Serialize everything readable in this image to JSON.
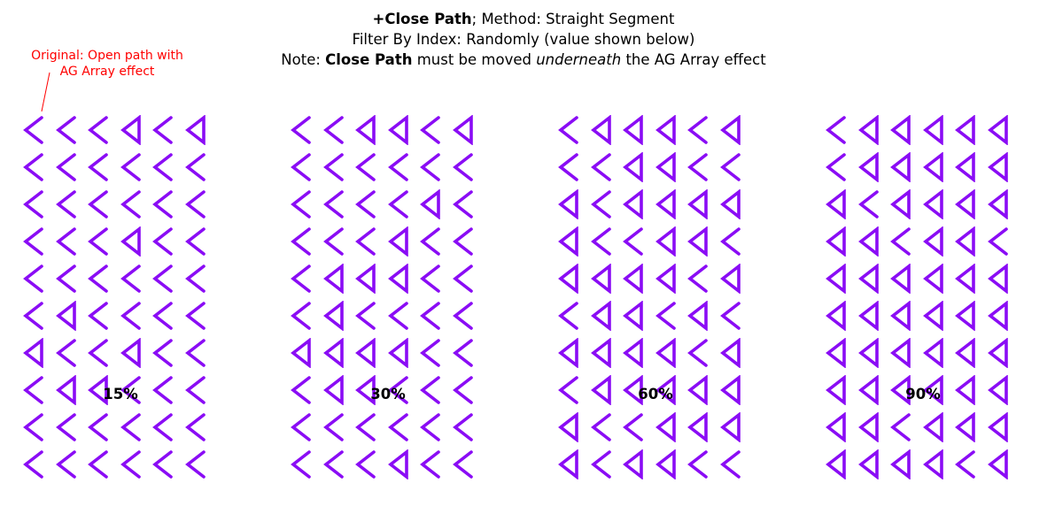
{
  "header": {
    "line1": {
      "bold": "+Close Path",
      "rest": "; Method: Straight Segment"
    },
    "line2": "Filter By Index: Randomly (value shown below)",
    "line3": {
      "prefix": "Note: ",
      "bold": "Close Path",
      "mid": " must be moved ",
      "italic": "underneath",
      "suffix": " the AG Array effect"
    }
  },
  "annotation": {
    "line1": "Original: Open path with",
    "line2": "AG Array effect",
    "color": "#ff0000"
  },
  "colors": {
    "shape_stroke": "#8a0cf5",
    "annotation": "#ff0000",
    "text": "#000000"
  },
  "legend": {
    "open_shape": "open chevron (path not closed)",
    "closed_shape": "closed triangle (path closed)"
  },
  "panels": [
    {
      "label": "15%",
      "grid": [
        [
          0,
          0,
          0,
          1,
          0,
          1
        ],
        [
          0,
          0,
          0,
          0,
          0,
          0
        ],
        [
          0,
          0,
          0,
          0,
          0,
          0
        ],
        [
          0,
          0,
          0,
          1,
          0,
          0
        ],
        [
          0,
          0,
          0,
          0,
          0,
          0
        ],
        [
          0,
          1,
          0,
          0,
          0,
          0
        ],
        [
          1,
          0,
          0,
          1,
          0,
          0
        ],
        [
          0,
          1,
          1,
          0,
          0,
          0
        ],
        [
          0,
          0,
          0,
          0,
          0,
          0
        ],
        [
          0,
          0,
          0,
          0,
          0,
          0
        ]
      ]
    },
    {
      "label": "30%",
      "grid": [
        [
          0,
          0,
          1,
          1,
          0,
          1
        ],
        [
          0,
          0,
          0,
          0,
          0,
          0
        ],
        [
          0,
          0,
          0,
          0,
          1,
          0
        ],
        [
          0,
          0,
          0,
          1,
          0,
          0
        ],
        [
          0,
          1,
          1,
          1,
          0,
          0
        ],
        [
          0,
          1,
          0,
          0,
          0,
          0
        ],
        [
          1,
          1,
          1,
          1,
          0,
          0
        ],
        [
          0,
          1,
          1,
          0,
          0,
          0
        ],
        [
          0,
          0,
          0,
          0,
          0,
          0
        ],
        [
          0,
          0,
          0,
          1,
          0,
          0
        ]
      ]
    },
    {
      "label": "60%",
      "grid": [
        [
          0,
          1,
          1,
          1,
          0,
          1
        ],
        [
          0,
          0,
          1,
          1,
          0,
          0
        ],
        [
          1,
          0,
          1,
          1,
          1,
          1
        ],
        [
          1,
          0,
          0,
          1,
          1,
          0
        ],
        [
          1,
          1,
          1,
          1,
          0,
          1
        ],
        [
          0,
          1,
          1,
          0,
          1,
          0
        ],
        [
          1,
          1,
          1,
          1,
          0,
          1
        ],
        [
          0,
          1,
          1,
          1,
          1,
          1
        ],
        [
          1,
          0,
          0,
          1,
          1,
          1
        ],
        [
          1,
          0,
          1,
          1,
          0,
          0
        ]
      ]
    },
    {
      "label": "90%",
      "grid": [
        [
          0,
          1,
          1,
          1,
          1,
          1
        ],
        [
          0,
          1,
          1,
          1,
          1,
          1
        ],
        [
          1,
          0,
          1,
          1,
          1,
          1
        ],
        [
          1,
          1,
          0,
          1,
          1,
          0
        ],
        [
          1,
          1,
          1,
          1,
          1,
          1
        ],
        [
          1,
          1,
          1,
          1,
          1,
          1
        ],
        [
          1,
          1,
          1,
          1,
          1,
          1
        ],
        [
          1,
          1,
          1,
          1,
          1,
          1
        ],
        [
          1,
          1,
          0,
          1,
          1,
          1
        ],
        [
          1,
          1,
          1,
          1,
          0,
          1
        ]
      ]
    }
  ]
}
